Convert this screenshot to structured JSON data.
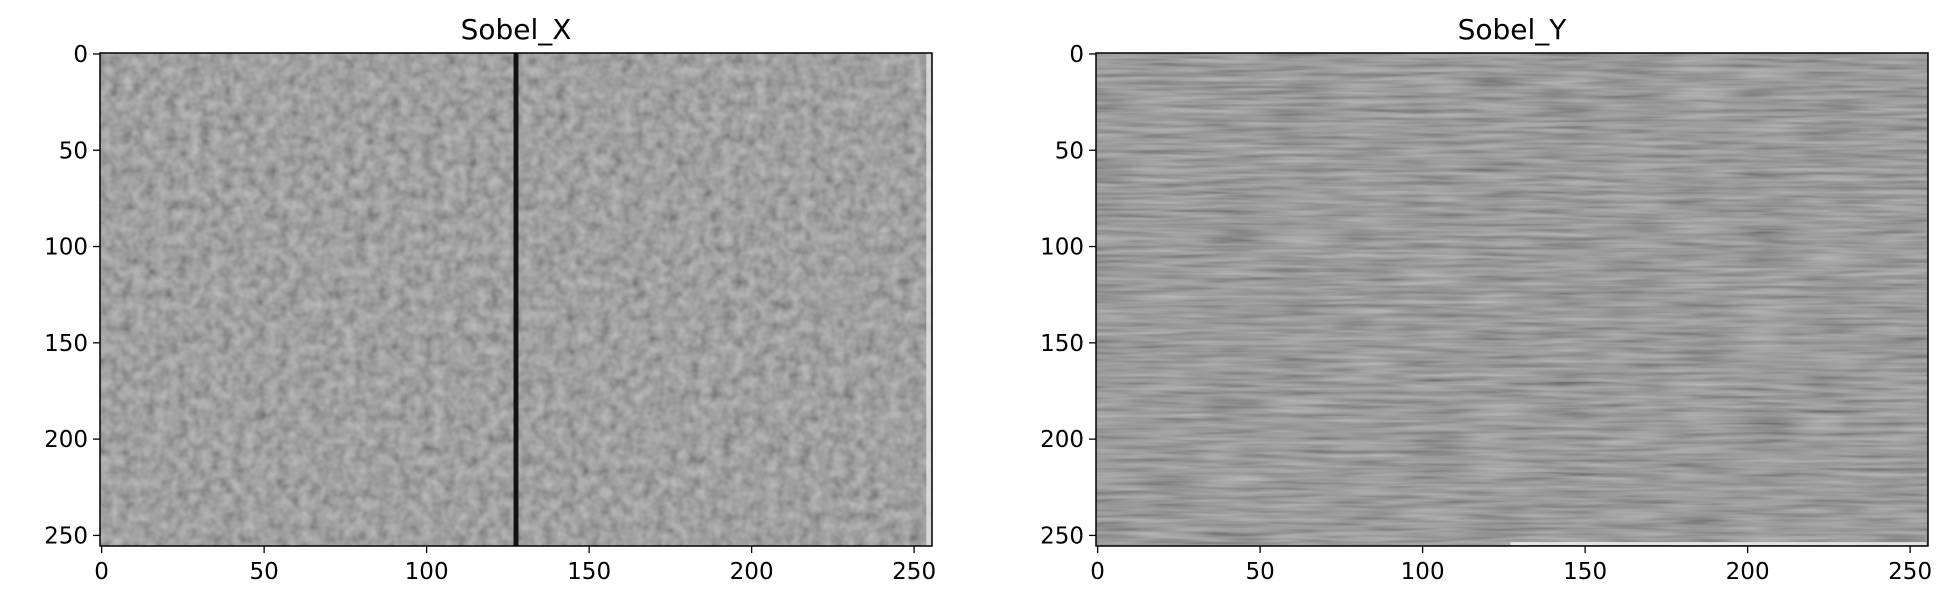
{
  "chart_data": [
    {
      "type": "heatmap",
      "title": "Sobel_X",
      "colormap": "gray",
      "image_size": [
        256,
        256
      ],
      "xlim": [
        0,
        255
      ],
      "ylim": [
        255,
        0
      ],
      "xticks": [
        0,
        50,
        100,
        150,
        200,
        250
      ],
      "yticks": [
        0,
        50,
        100,
        150,
        200,
        250
      ],
      "background_value": "mid-gray noise",
      "features": [
        {
          "kind": "vertical_line",
          "x": 127.5,
          "value": "black"
        },
        {
          "kind": "vertical_line",
          "x": 254.5,
          "value": "light"
        }
      ],
      "colors": {
        "mid": "#808080",
        "line": "#121212"
      }
    },
    {
      "type": "heatmap",
      "title": "Sobel_Y",
      "colormap": "gray",
      "image_size": [
        256,
        256
      ],
      "xlim": [
        0,
        255
      ],
      "ylim": [
        255,
        0
      ],
      "xticks": [
        0,
        50,
        100,
        150,
        200,
        250
      ],
      "yticks": [
        0,
        50,
        100,
        150,
        200,
        250
      ],
      "background_value": "mid-gray horizontal streaks",
      "features": [
        {
          "kind": "horizontal_line",
          "x_from": 127,
          "x_to": 255,
          "y": 254.5,
          "value": "light"
        }
      ],
      "colors": {
        "mid": "#7c7c7c",
        "line": "#f0f0f0"
      }
    }
  ]
}
